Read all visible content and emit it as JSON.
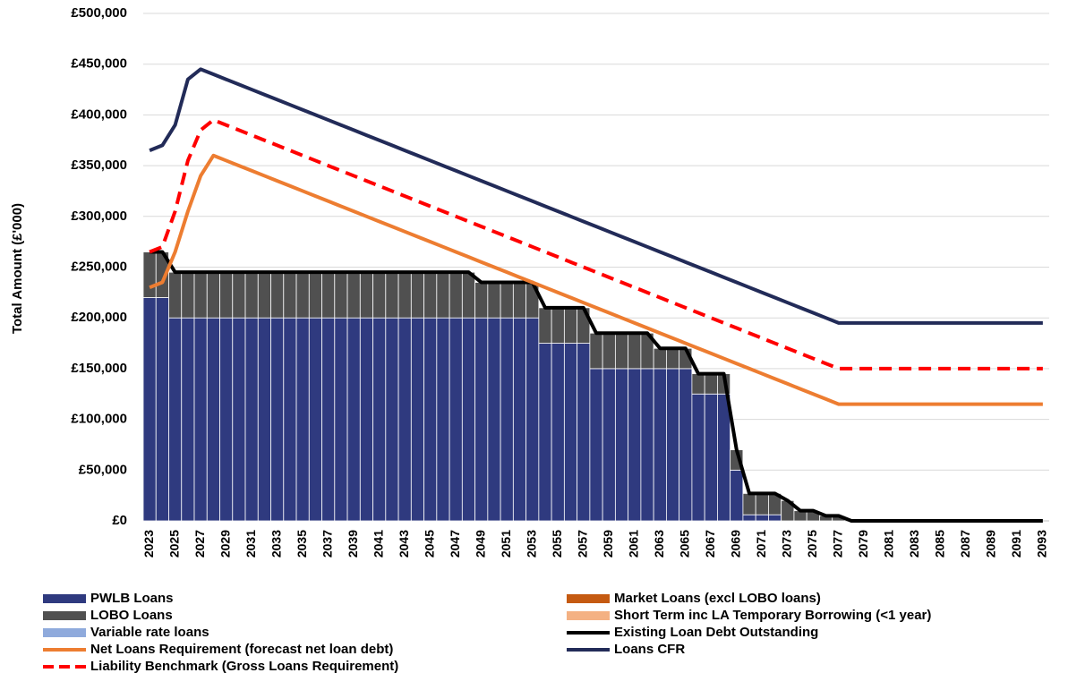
{
  "chart_data": {
    "type": "bar",
    "y_label": "Total Amount (£'000)",
    "categories": [
      "2023",
      null,
      "2025",
      null,
      "2027",
      null,
      "2029",
      null,
      "2031",
      null,
      "2033",
      null,
      "2035",
      null,
      "2037",
      null,
      "2039",
      null,
      "2041",
      null,
      "2043",
      null,
      "2045",
      null,
      "2047",
      null,
      "2049",
      null,
      "2051",
      null,
      "2053",
      null,
      "2055",
      null,
      "2057",
      null,
      "2059",
      null,
      "2061",
      null,
      "2063",
      null,
      "2065",
      null,
      "2067",
      null,
      "2069",
      null,
      "2071",
      null,
      "2073",
      null,
      "2075",
      null,
      "2077",
      null,
      "2079",
      null,
      "2081",
      null,
      "2083",
      null,
      "2085",
      null,
      "2087",
      null,
      "2089",
      null,
      "2091",
      null,
      "2093"
    ],
    "ylim": [
      0,
      500000
    ],
    "yticks": [
      {
        "value": 0,
        "label": "£0"
      },
      {
        "value": 50000,
        "label": "£50,000"
      },
      {
        "value": 100000,
        "label": "£100,000"
      },
      {
        "value": 150000,
        "label": "£150,000"
      },
      {
        "value": 200000,
        "label": "£200,000"
      },
      {
        "value": 250000,
        "label": "£250,000"
      },
      {
        "value": 300000,
        "label": "£300,000"
      },
      {
        "value": 350000,
        "label": "£350,000"
      },
      {
        "value": 400000,
        "label": "£400,000"
      },
      {
        "value": 450000,
        "label": "£450,000"
      },
      {
        "value": 500000,
        "label": "£500,000"
      }
    ],
    "grid": true,
    "series": [
      {
        "name": "PWLB Loans",
        "kind": "bar",
        "color": "#2f3a7f",
        "values": [
          220000,
          220000,
          200000,
          200000,
          200000,
          200000,
          200000,
          200000,
          200000,
          200000,
          200000,
          200000,
          200000,
          200000,
          200000,
          200000,
          200000,
          200000,
          200000,
          200000,
          200000,
          200000,
          200000,
          200000,
          200000,
          200000,
          200000,
          200000,
          200000,
          200000,
          200000,
          175000,
          175000,
          175000,
          175000,
          150000,
          150000,
          150000,
          150000,
          150000,
          150000,
          150000,
          150000,
          125000,
          125000,
          125000,
          50000,
          6000,
          6000,
          6000,
          0,
          0,
          0,
          0,
          0,
          0,
          0,
          0,
          0,
          0,
          0,
          0,
          0,
          0,
          0,
          0,
          0,
          0,
          0,
          0,
          0
        ]
      },
      {
        "name": "Market Loans (excl LOBO loans)",
        "kind": "bar",
        "color": "#c55a11",
        "values": [
          0,
          0,
          0,
          0,
          0,
          0,
          0,
          0,
          0,
          0,
          0,
          0,
          0,
          0,
          0,
          0,
          0,
          0,
          0,
          0,
          0,
          0,
          0,
          0,
          0,
          0,
          0,
          0,
          0,
          0,
          0,
          0,
          0,
          0,
          0,
          0,
          0,
          0,
          0,
          0,
          0,
          0,
          0,
          0,
          0,
          0,
          0,
          0,
          0,
          0,
          0,
          0,
          0,
          0,
          0,
          0,
          0,
          0,
          0,
          0,
          0,
          0,
          0,
          0,
          0,
          0,
          0,
          0,
          0,
          0,
          0
        ]
      },
      {
        "name": "LOBO Loans",
        "kind": "bar",
        "color": "#505050",
        "values": [
          45000,
          45000,
          45000,
          45000,
          45000,
          45000,
          45000,
          45000,
          45000,
          45000,
          45000,
          45000,
          45000,
          45000,
          45000,
          45000,
          45000,
          45000,
          45000,
          45000,
          45000,
          45000,
          45000,
          45000,
          45000,
          45000,
          35000,
          35000,
          35000,
          35000,
          35000,
          35000,
          35000,
          35000,
          35000,
          35000,
          35000,
          35000,
          35000,
          35000,
          20000,
          20000,
          20000,
          20000,
          20000,
          20000,
          20000,
          21000,
          21000,
          21000,
          20000,
          10000,
          10000,
          5000,
          5000,
          0,
          0,
          0,
          0,
          0,
          0,
          0,
          0,
          0,
          0,
          0,
          0,
          0,
          0,
          0,
          0
        ]
      },
      {
        "name": "Short Term inc LA Temporary Borrowing (<1 year)",
        "kind": "bar",
        "color": "#f4b183",
        "values": [
          0,
          0,
          0,
          0,
          0,
          0,
          0,
          0,
          0,
          0,
          0,
          0,
          0,
          0,
          0,
          0,
          0,
          0,
          0,
          0,
          0,
          0,
          0,
          0,
          0,
          0,
          0,
          0,
          0,
          0,
          0,
          0,
          0,
          0,
          0,
          0,
          0,
          0,
          0,
          0,
          0,
          0,
          0,
          0,
          0,
          0,
          0,
          0,
          0,
          0,
          0,
          0,
          0,
          0,
          0,
          0,
          0,
          0,
          0,
          0,
          0,
          0,
          0,
          0,
          0,
          0,
          0,
          0,
          0,
          0,
          0
        ]
      },
      {
        "name": "Variable rate loans",
        "kind": "bar",
        "color": "#8faadc",
        "values": [
          0,
          0,
          0,
          0,
          0,
          0,
          0,
          0,
          0,
          0,
          0,
          0,
          0,
          0,
          0,
          0,
          0,
          0,
          0,
          0,
          0,
          0,
          0,
          0,
          0,
          0,
          0,
          0,
          0,
          0,
          0,
          0,
          0,
          0,
          0,
          0,
          0,
          0,
          0,
          0,
          0,
          0,
          0,
          0,
          0,
          0,
          0,
          0,
          0,
          0,
          0,
          0,
          0,
          0,
          0,
          0,
          0,
          0,
          0,
          0,
          0,
          0,
          0,
          0,
          0,
          0,
          0,
          0,
          0,
          0,
          0
        ]
      },
      {
        "name": "Existing Loan Debt Outstanding",
        "kind": "line",
        "color": "#000000",
        "values": [
          265000,
          265000,
          245000,
          245000,
          245000,
          245000,
          245000,
          245000,
          245000,
          245000,
          245000,
          245000,
          245000,
          245000,
          245000,
          245000,
          245000,
          245000,
          245000,
          245000,
          245000,
          245000,
          245000,
          245000,
          245000,
          245000,
          235000,
          235000,
          235000,
          235000,
          235000,
          210000,
          210000,
          210000,
          210000,
          185000,
          185000,
          185000,
          185000,
          185000,
          170000,
          170000,
          170000,
          145000,
          145000,
          145000,
          70000,
          27000,
          27000,
          27000,
          20000,
          10000,
          10000,
          5000,
          5000,
          0,
          0,
          0,
          0,
          0,
          0,
          0,
          0,
          0,
          0,
          0,
          0,
          0,
          0,
          0,
          0
        ]
      },
      {
        "name": "Net Loans Requirement (forecast net loan debt)",
        "kind": "line",
        "color": "#ed7d31",
        "values": [
          230000,
          235000,
          265000,
          305000,
          340000,
          360000,
          355000,
          350000,
          345000,
          340000,
          335000,
          330000,
          325000,
          320000,
          315000,
          310000,
          305000,
          300000,
          295000,
          290000,
          285000,
          280000,
          275000,
          270000,
          265000,
          260000,
          255000,
          250000,
          245000,
          240000,
          235000,
          230000,
          225000,
          220000,
          215000,
          210000,
          205000,
          200000,
          195000,
          190000,
          185000,
          180000,
          175000,
          170000,
          165000,
          160000,
          155000,
          150000,
          145000,
          140000,
          135000,
          130000,
          125000,
          120000,
          115000,
          115000,
          115000,
          115000,
          115000,
          115000,
          115000,
          115000,
          115000,
          115000,
          115000,
          115000,
          115000,
          115000,
          115000,
          115000,
          115000
        ]
      },
      {
        "name": "Loans CFR",
        "kind": "line",
        "color": "#222b58",
        "values": [
          365000,
          370000,
          390000,
          435000,
          445000,
          440000,
          435000,
          430000,
          425000,
          420000,
          415000,
          410000,
          405000,
          400000,
          395000,
          390000,
          385000,
          380000,
          375000,
          370000,
          365000,
          360000,
          355000,
          350000,
          345000,
          340000,
          335000,
          330000,
          325000,
          320000,
          315000,
          310000,
          305000,
          300000,
          295000,
          290000,
          285000,
          280000,
          275000,
          270000,
          265000,
          260000,
          255000,
          250000,
          245000,
          240000,
          235000,
          230000,
          225000,
          220000,
          215000,
          210000,
          205000,
          200000,
          195000,
          195000,
          195000,
          195000,
          195000,
          195000,
          195000,
          195000,
          195000,
          195000,
          195000,
          195000,
          195000,
          195000,
          195000,
          195000,
          195000
        ]
      },
      {
        "name": "Liability Benchmark (Gross Loans Requirement)",
        "kind": "line",
        "dash": true,
        "color": "#ff0000",
        "values": [
          265000,
          270000,
          305000,
          355000,
          385000,
          395000,
          390000,
          385000,
          380000,
          375000,
          370000,
          365000,
          360000,
          355000,
          350000,
          345000,
          340000,
          335000,
          330000,
          325000,
          320000,
          315000,
          310000,
          305000,
          300000,
          295000,
          290000,
          285000,
          280000,
          275000,
          270000,
          265000,
          260000,
          255000,
          250000,
          245000,
          240000,
          235000,
          230000,
          225000,
          220000,
          215000,
          210000,
          205000,
          200000,
          195000,
          190000,
          185000,
          180000,
          175000,
          170000,
          165000,
          160000,
          155000,
          150000,
          150000,
          150000,
          150000,
          150000,
          150000,
          150000,
          150000,
          150000,
          150000,
          150000,
          150000,
          150000,
          150000,
          150000,
          150000,
          150000
        ]
      }
    ]
  }
}
